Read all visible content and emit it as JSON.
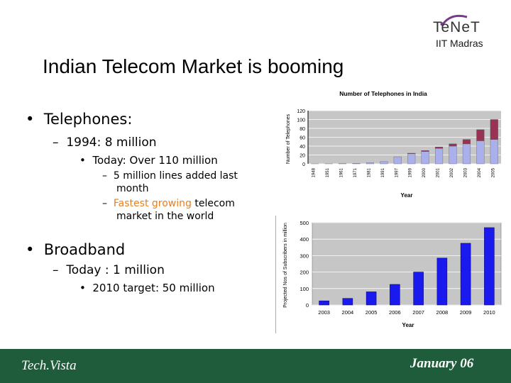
{
  "logo": {
    "text": "TeNeT",
    "subtitle": "IIT Madras"
  },
  "title": "Indian Telecom Market is booming",
  "bullets": {
    "telephones": "Telephones:",
    "tel_1994": "1994: 8 million",
    "tel_today": "Today: Over 110 million",
    "tel_lines_1": "5 million lines added last",
    "tel_lines_2": "month",
    "tel_fast_a": "Fastest growing",
    "tel_fast_b": " telecom",
    "tel_fast_2": "market in the world",
    "broadband": "Broadband",
    "bb_today": "Today : 1 million",
    "bb_target": "2010 target: 50 million"
  },
  "colors": {
    "footer": "#1f5c3c",
    "bar_fixed": "#aab0ec",
    "bar_mobile": "#993355",
    "bar_broadband": "#1a1aee",
    "highlight": "#e87f1f"
  },
  "chart_data": [
    {
      "type": "bar",
      "stacked": true,
      "title": "Number of Telephones in India",
      "xlabel": "Year",
      "ylabel": "Number of Telephones",
      "categories": [
        "1948",
        "1951",
        "1961",
        "1971",
        "1981",
        "1991",
        "1997",
        "1999",
        "2000",
        "2001",
        "2002",
        "2003",
        "2004",
        "2005"
      ],
      "series": [
        {
          "values": [
            0.1,
            0.2,
            0.5,
            1,
            2.5,
            5,
            16,
            23,
            28,
            35,
            40,
            45,
            52,
            55
          ]
        },
        {
          "values": [
            0,
            0,
            0,
            0,
            0,
            0,
            0,
            1,
            2,
            3,
            5,
            10,
            25,
            45
          ]
        }
      ],
      "yticks": [
        "0",
        "20",
        "40",
        "60",
        "80",
        "100",
        "120"
      ],
      "ylim": [
        0,
        120
      ],
      "grid": true,
      "legend": "none"
    },
    {
      "type": "bar",
      "xlabel": "Year",
      "ylabel": "Projected Nos of Subscribers in million",
      "categories": [
        "2003",
        "2004",
        "2005",
        "2006",
        "2007",
        "2008",
        "2009",
        "2010"
      ],
      "values": [
        25,
        40,
        80,
        125,
        200,
        285,
        375,
        470
      ],
      "yticks": [
        "0",
        "100",
        "200",
        "300",
        "400",
        "500"
      ],
      "ylim": [
        0,
        500
      ],
      "grid": true,
      "legend": "none"
    }
  ],
  "footer": {
    "left": "Tech.Vista",
    "right": "January 06"
  }
}
